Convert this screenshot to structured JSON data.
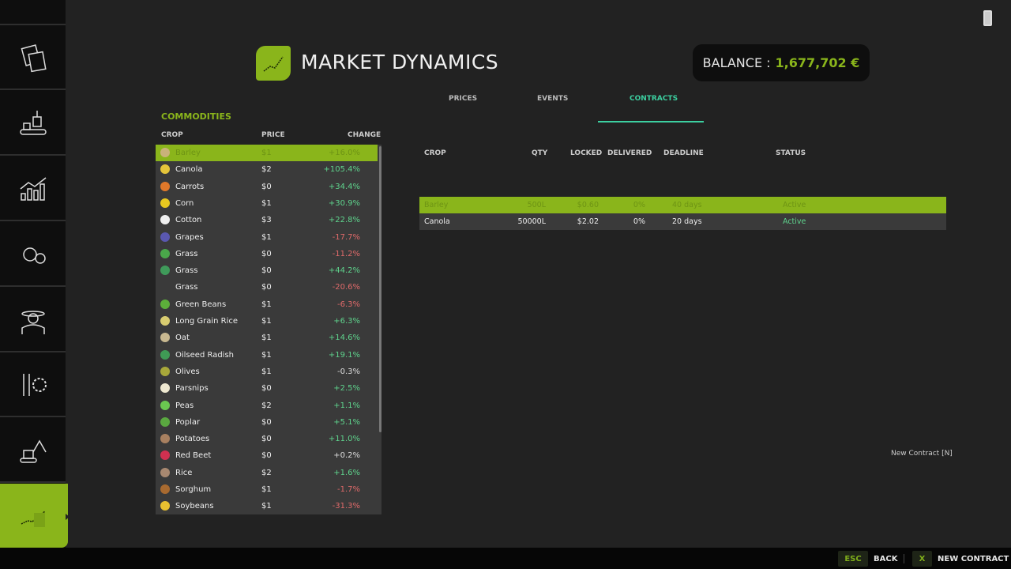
{
  "app": {
    "title": "MARKET DYNAMICS",
    "balance_label": "BALANCE :",
    "balance_value": "1,677,702 €",
    "accent": "#8ab51b"
  },
  "sidebar": {
    "items": [
      {
        "icon": "tractor-icon"
      },
      {
        "icon": "documents-icon"
      },
      {
        "icon": "production-icon"
      },
      {
        "icon": "statistics-icon"
      },
      {
        "icon": "finance-icon"
      },
      {
        "icon": "farmer-icon"
      },
      {
        "icon": "settings-icon"
      },
      {
        "icon": "excavator-icon"
      },
      {
        "icon": "market-chart-icon",
        "active": true
      }
    ]
  },
  "tabs": [
    {
      "label": "PRICES"
    },
    {
      "label": "EVENTS"
    },
    {
      "label": "CONTRACTS",
      "active": true
    }
  ],
  "commodities": {
    "title": "COMMODITIES",
    "headers": {
      "crop": "CROP",
      "price": "PRICE",
      "change": "CHANGE"
    },
    "rows": [
      {
        "crop": "Barley",
        "price": "$1",
        "change": "+16.0%",
        "color": "#c9b27a"
      },
      {
        "crop": "Canola",
        "price": "$2",
        "change": "+105.4%",
        "color": "#e4c43a"
      },
      {
        "crop": "Carrots",
        "price": "$0",
        "change": "+34.4%",
        "color": "#e0782a"
      },
      {
        "crop": "Corn",
        "price": "$1",
        "change": "+30.9%",
        "color": "#e8c820"
      },
      {
        "crop": "Cotton",
        "price": "$3",
        "change": "+22.8%",
        "color": "#eeeeee"
      },
      {
        "crop": "Grapes",
        "price": "$1",
        "change": "-17.7%",
        "color": "#5a58b0"
      },
      {
        "crop": "Grass",
        "price": "$0",
        "change": "-11.2%",
        "color": "#4aa84a"
      },
      {
        "crop": "Grass",
        "price": "$0",
        "change": "+44.2%",
        "color": "#3f9a5a"
      },
      {
        "crop": "Grass",
        "price": "$0",
        "change": "-20.6%",
        "color": ""
      },
      {
        "crop": "Green Beans",
        "price": "$1",
        "change": "-6.3%",
        "color": "#5cae3a"
      },
      {
        "crop": "Long Grain Rice",
        "price": "$1",
        "change": "+6.3%",
        "color": "#d8cc70"
      },
      {
        "crop": "Oat",
        "price": "$1",
        "change": "+14.6%",
        "color": "#c8b890"
      },
      {
        "crop": "Oilseed Radish",
        "price": "$1",
        "change": "+19.1%",
        "color": "#3f9a55"
      },
      {
        "crop": "Olives",
        "price": "$1",
        "change": "-0.3%",
        "color": "#a8a83a"
      },
      {
        "crop": "Parsnips",
        "price": "$0",
        "change": "+2.5%",
        "color": "#eee8d0"
      },
      {
        "crop": "Peas",
        "price": "$2",
        "change": "+1.1%",
        "color": "#6ac850"
      },
      {
        "crop": "Poplar",
        "price": "$0",
        "change": "+5.1%",
        "color": "#5aa840"
      },
      {
        "crop": "Potatoes",
        "price": "$0",
        "change": "+11.0%",
        "color": "#a88060"
      },
      {
        "crop": "Red Beet",
        "price": "$0",
        "change": "+0.2%",
        "color": "#d03050"
      },
      {
        "crop": "Rice",
        "price": "$2",
        "change": "+1.6%",
        "color": "#a88870"
      },
      {
        "crop": "Sorghum",
        "price": "$1",
        "change": "-1.7%",
        "color": "#a86a30"
      },
      {
        "crop": "Soybeans",
        "price": "$1",
        "change": "-31.3%",
        "color": "#e8c030"
      }
    ]
  },
  "contracts": {
    "headers": [
      "CROP",
      "QTY",
      "LOCKED",
      "DELIVERED",
      "DEADLINE",
      "STATUS"
    ],
    "rows": [
      {
        "crop": "Barley",
        "qty": "500L",
        "locked": "$0.60",
        "delivered": "0%",
        "deadline": "40 days",
        "status": "Active"
      },
      {
        "crop": "Canola",
        "qty": "50000L",
        "locked": "$2.02",
        "delivered": "0%",
        "deadline": "20 days",
        "status": "Active"
      }
    ],
    "new_contract_hint": "New Contract [N]"
  },
  "bottombar": {
    "back_key": "ESC",
    "back_label": "BACK",
    "new_key": "X",
    "new_label": "NEW CONTRACT"
  }
}
